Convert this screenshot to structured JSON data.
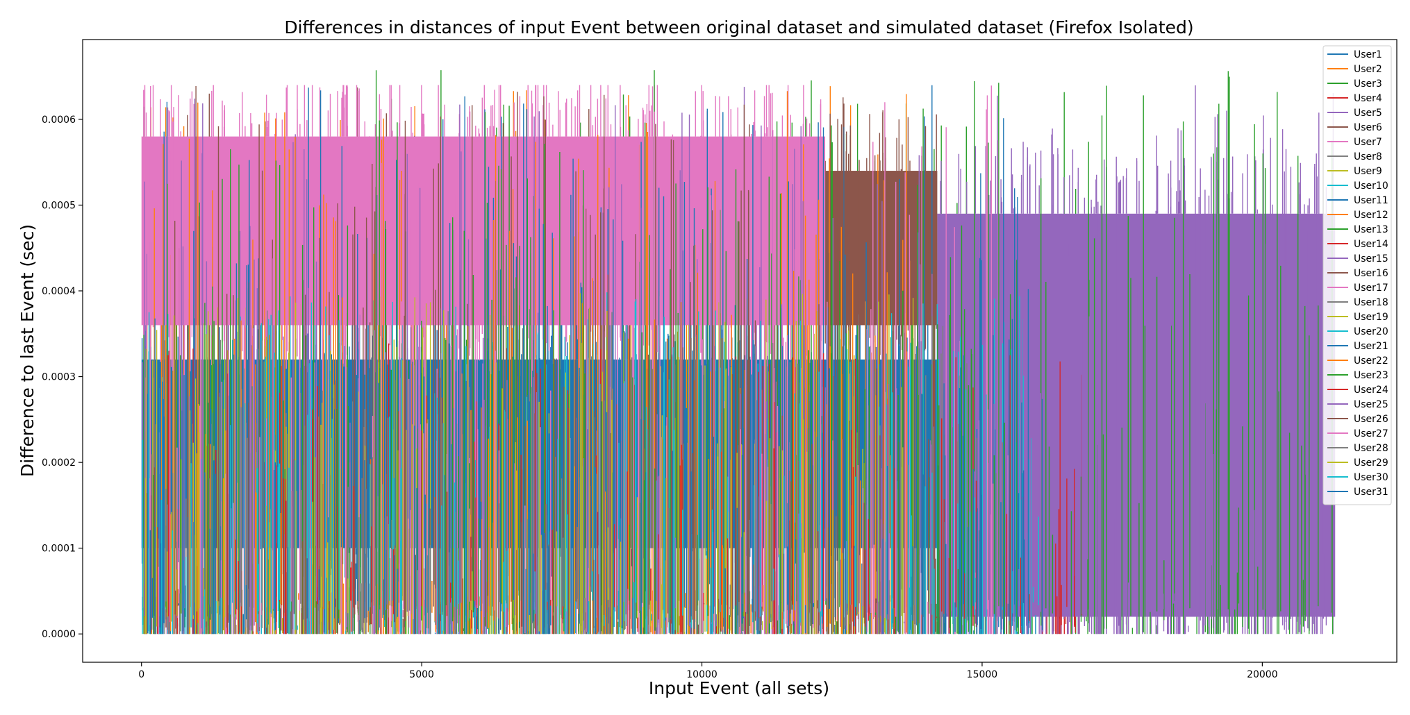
{
  "chart_data": {
    "type": "line",
    "title": "Differences in distances of input Event between original dataset and simulated dataset (Firefox Isolated)",
    "xlabel": "Input Event (all sets)",
    "ylabel": "Difference to last Event (sec)",
    "xlim": [
      -1050,
      22400
    ],
    "ylim": [
      -3.3e-05,
      0.000693
    ],
    "x_ticks": [
      0,
      5000,
      10000,
      15000,
      20000
    ],
    "x_tick_labels": [
      "0",
      "5000",
      "10000",
      "15000",
      "20000"
    ],
    "y_ticks": [
      0.0,
      0.0001,
      0.0002,
      0.0003,
      0.0004,
      0.0005,
      0.0006
    ],
    "y_tick_labels": [
      "0.0000",
      "0.0001",
      "0.0002",
      "0.0003",
      "0.0004",
      "0.0005",
      "0.0006"
    ],
    "grid": false,
    "legend_position": "top-right",
    "series": [
      {
        "name": "User1",
        "color": "#1f77b4",
        "x_range": [
          0,
          16080
        ],
        "y_range": [
          0.0,
          0.00035
        ]
      },
      {
        "name": "User2",
        "color": "#ff7f0e",
        "x_range": [
          0,
          13800
        ],
        "y_range": [
          0.0,
          0.00064
        ]
      },
      {
        "name": "User3",
        "color": "#2ca02c",
        "x_range": [
          0,
          21300
        ],
        "y_range": [
          0.0,
          0.00066
        ]
      },
      {
        "name": "User4",
        "color": "#d62728",
        "x_range": [
          16080,
          16780
        ],
        "y_range": [
          0.0,
          0.00034
        ]
      },
      {
        "name": "User5",
        "color": "#9467bd",
        "x_range": [
          14200,
          21300
        ],
        "y_range": [
          0.0,
          0.00064
        ]
      },
      {
        "name": "User6",
        "color": "#8c564b",
        "x_range": [
          0,
          14200
        ],
        "y_range": [
          0.0,
          0.00064
        ]
      },
      {
        "name": "User7",
        "color": "#e377c2",
        "x_range": [
          0,
          12200
        ],
        "y_range": [
          0.0,
          0.00064
        ]
      },
      {
        "name": "User8",
        "color": "#7f7f7f",
        "x_range": [
          0,
          15500
        ],
        "y_range": [
          0.0,
          0.00038
        ]
      },
      {
        "name": "User9",
        "color": "#bcbd22",
        "x_range": [
          0,
          13800
        ],
        "y_range": [
          0.0,
          0.0004
        ]
      },
      {
        "name": "User10",
        "color": "#17becf",
        "x_range": [
          0,
          16080
        ],
        "y_range": [
          0.0,
          0.0004
        ]
      },
      {
        "name": "User11",
        "color": "#1f77b4",
        "x_range": [
          0,
          16080
        ],
        "y_range": [
          0.0,
          0.00064
        ]
      },
      {
        "name": "User12",
        "color": "#ff7f0e",
        "x_range": [
          0,
          13800
        ],
        "y_range": [
          0.0,
          0.00064
        ]
      },
      {
        "name": "User13",
        "color": "#2ca02c",
        "x_range": [
          0,
          21300
        ],
        "y_range": [
          0.0,
          0.00066
        ]
      },
      {
        "name": "User14",
        "color": "#d62728",
        "x_range": [
          0,
          16780
        ],
        "y_range": [
          0.0,
          0.00034
        ]
      },
      {
        "name": "User15",
        "color": "#9467bd",
        "x_range": [
          0,
          21300
        ],
        "y_range": [
          0.0,
          0.00064
        ]
      },
      {
        "name": "User16",
        "color": "#8c564b",
        "x_range": [
          0,
          14200
        ],
        "y_range": [
          0.0,
          0.00064
        ]
      },
      {
        "name": "User17",
        "color": "#e377c2",
        "x_range": [
          0,
          15500
        ],
        "y_range": [
          0.0,
          0.00064
        ]
      },
      {
        "name": "User18",
        "color": "#7f7f7f",
        "x_range": [
          0,
          15500
        ],
        "y_range": [
          0.0,
          0.00038
        ]
      },
      {
        "name": "User19",
        "color": "#bcbd22",
        "x_range": [
          0,
          13800
        ],
        "y_range": [
          0.0,
          0.0004
        ]
      },
      {
        "name": "User20",
        "color": "#17becf",
        "x_range": [
          0,
          16080
        ],
        "y_range": [
          0.0,
          0.0004
        ]
      },
      {
        "name": "User21",
        "color": "#1f77b4",
        "x_range": [
          0,
          16080
        ],
        "y_range": [
          0.0,
          0.00064
        ]
      },
      {
        "name": "User22",
        "color": "#ff7f0e",
        "x_range": [
          0,
          13800
        ],
        "y_range": [
          0.0,
          0.00064
        ]
      },
      {
        "name": "User23",
        "color": "#2ca02c",
        "x_range": [
          0,
          21300
        ],
        "y_range": [
          0.0,
          0.00066
        ]
      },
      {
        "name": "User24",
        "color": "#d62728",
        "x_range": [
          0,
          16780
        ],
        "y_range": [
          0.0,
          0.00034
        ]
      },
      {
        "name": "User25",
        "color": "#9467bd",
        "x_range": [
          0,
          21300
        ],
        "y_range": [
          0.0,
          0.00064
        ]
      },
      {
        "name": "User26",
        "color": "#8c564b",
        "x_range": [
          0,
          14200
        ],
        "y_range": [
          0.0,
          0.00064
        ]
      },
      {
        "name": "User27",
        "color": "#e377c2",
        "x_range": [
          0,
          15500
        ],
        "y_range": [
          0.0,
          0.00064
        ]
      },
      {
        "name": "User28",
        "color": "#7f7f7f",
        "x_range": [
          0,
          15500
        ],
        "y_range": [
          0.0,
          0.00038
        ]
      },
      {
        "name": "User29",
        "color": "#bcbd22",
        "x_range": [
          0,
          13800
        ],
        "y_range": [
          0.0,
          0.0004
        ]
      },
      {
        "name": "User30",
        "color": "#17becf",
        "x_range": [
          0,
          16080
        ],
        "y_range": [
          0.0,
          0.0004
        ]
      },
      {
        "name": "User31",
        "color": "#1f77b4",
        "x_range": [
          0,
          16080
        ],
        "y_range": [
          0.0,
          0.00032
        ]
      }
    ],
    "bands": [
      {
        "name": "User5",
        "color": "#9467bd",
        "x_range": [
          14200,
          21300
        ],
        "y_range": [
          2e-05,
          0.00049
        ]
      },
      {
        "name": "User6",
        "color": "#8c564b",
        "x_range": [
          12200,
          14200
        ],
        "y_range": [
          0.00036,
          0.00054
        ]
      },
      {
        "name": "User7",
        "color": "#e377c2",
        "x_range": [
          0,
          12200
        ],
        "y_range": [
          0.00036,
          0.00058
        ]
      },
      {
        "name": "User1",
        "color": "#1f77b4",
        "x_range": [
          0,
          16080
        ],
        "y_range": [
          0.0001,
          0.00032
        ]
      },
      {
        "name": "User4",
        "color": "#d62728",
        "x_range": [
          16080,
          16780
        ],
        "y_range": [
          9e-05,
          0.00028
        ]
      }
    ]
  }
}
